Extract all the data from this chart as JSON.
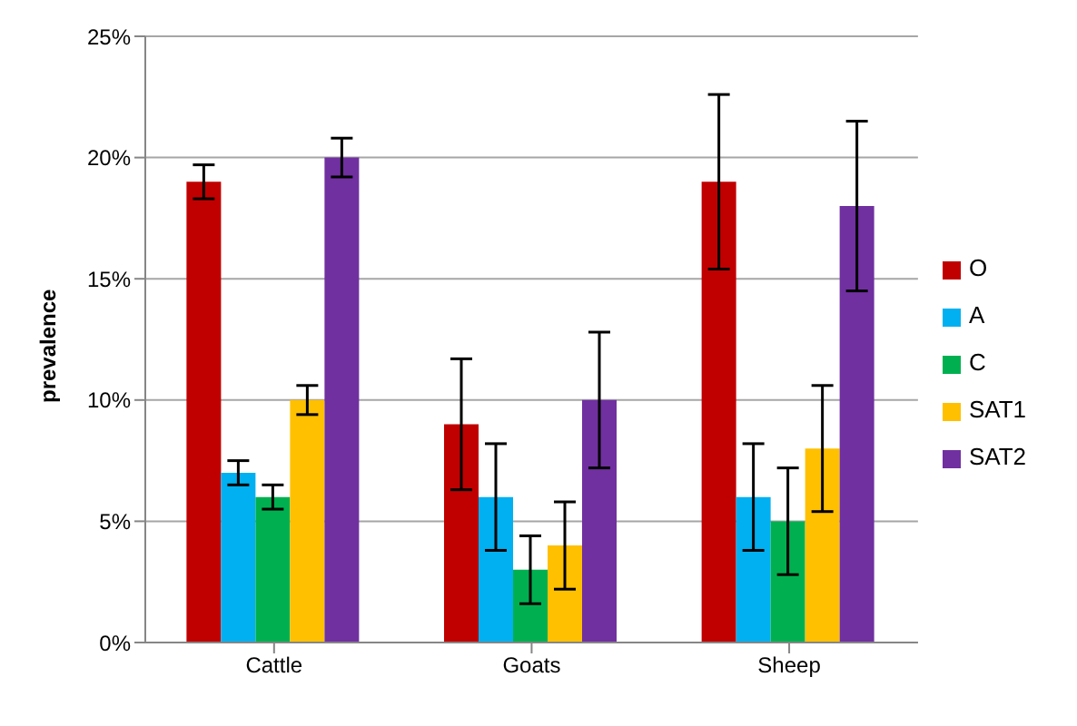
{
  "chart_data": {
    "type": "bar",
    "ylabel": "prevalence",
    "categories": [
      "Cattle",
      "Goats",
      "Sheep"
    ],
    "series": [
      {
        "name": "O",
        "color": "#c00000",
        "values": [
          19,
          9,
          19
        ],
        "errors": [
          0.7,
          2.7,
          3.6
        ]
      },
      {
        "name": "A",
        "color": "#00b0f0",
        "values": [
          7,
          6,
          6
        ],
        "errors": [
          0.5,
          2.2,
          2.2
        ]
      },
      {
        "name": "C",
        "color": "#00b050",
        "values": [
          6,
          3,
          5
        ],
        "errors": [
          0.5,
          1.4,
          2.2
        ]
      },
      {
        "name": "SAT1",
        "color": "#ffc000",
        "values": [
          10,
          4,
          8
        ],
        "errors": [
          0.6,
          1.8,
          2.6
        ]
      },
      {
        "name": "SAT2",
        "color": "#7030a0",
        "values": [
          20,
          10,
          18
        ],
        "errors": [
          0.8,
          2.8,
          3.5
        ]
      }
    ],
    "ylim": [
      0,
      25
    ],
    "yticks": [
      {
        "value": 0,
        "label": "0%"
      },
      {
        "value": 5,
        "label": "5%"
      },
      {
        "value": 10,
        "label": "10%"
      },
      {
        "value": 15,
        "label": "15%"
      },
      {
        "value": 20,
        "label": "20%"
      },
      {
        "value": 25,
        "label": "25%"
      }
    ],
    "grid": "y",
    "legend": "right"
  }
}
